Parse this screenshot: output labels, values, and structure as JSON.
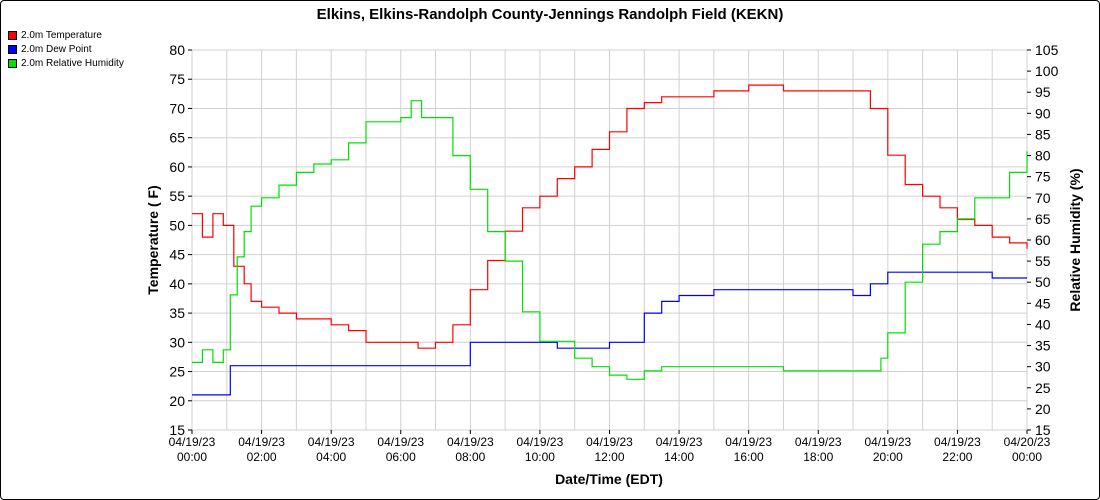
{
  "chart_data": {
    "type": "line",
    "title": "Elkins, Elkins-Randolph County-Jennings Randolph Field (KEKN)",
    "xlabel": "Date/Time (EDT)",
    "ylabel_left": "Temperature ( F)",
    "ylabel_right": "Relative Humidity (%)",
    "ylim_left": [
      15,
      80
    ],
    "ylim_right": [
      15,
      105
    ],
    "xlim_hours": [
      0,
      24
    ],
    "x_ticks": [
      {
        "date": "04/19/23",
        "time": "00:00"
      },
      {
        "date": "04/19/23",
        "time": "02:00"
      },
      {
        "date": "04/19/23",
        "time": "04:00"
      },
      {
        "date": "04/19/23",
        "time": "06:00"
      },
      {
        "date": "04/19/23",
        "time": "08:00"
      },
      {
        "date": "04/19/23",
        "time": "10:00"
      },
      {
        "date": "04/19/23",
        "time": "12:00"
      },
      {
        "date": "04/19/23",
        "time": "14:00"
      },
      {
        "date": "04/19/23",
        "time": "16:00"
      },
      {
        "date": "04/19/23",
        "time": "18:00"
      },
      {
        "date": "04/19/23",
        "time": "20:00"
      },
      {
        "date": "04/19/23",
        "time": "22:00"
      },
      {
        "date": "04/20/23",
        "time": "00:00"
      }
    ],
    "y_ticks_left": [
      15,
      20,
      25,
      30,
      35,
      40,
      45,
      50,
      55,
      60,
      65,
      70,
      75,
      80
    ],
    "y_ticks_right": [
      15,
      20,
      25,
      30,
      35,
      40,
      45,
      50,
      55,
      60,
      65,
      70,
      75,
      80,
      85,
      90,
      95,
      100,
      105
    ],
    "grid": true,
    "legend_position": "top-left",
    "series": [
      {
        "name": "2.0m Temperature",
        "color": "#ff0000",
        "axis": "left",
        "x": [
          0,
          0.3,
          0.6,
          0.9,
          1.2,
          1.5,
          1.7,
          2.0,
          2.5,
          3.0,
          3.5,
          4.0,
          4.5,
          5.0,
          5.5,
          6.0,
          6.5,
          7.0,
          7.5,
          8.0,
          8.5,
          9.0,
          9.5,
          10.0,
          10.5,
          11.0,
          11.5,
          12.0,
          12.5,
          13.0,
          13.5,
          14.0,
          14.5,
          15.0,
          16.0,
          17.0,
          18.0,
          19.0,
          19.5,
          20.0,
          20.5,
          21.0,
          21.5,
          22.0,
          22.5,
          23.0,
          23.5,
          24.0
        ],
        "y": [
          52,
          48,
          52,
          50,
          43,
          40,
          37,
          36,
          35,
          34,
          34,
          33,
          32,
          30,
          30,
          30,
          29,
          30,
          33,
          39,
          44,
          49,
          53,
          55,
          58,
          60,
          63,
          66,
          70,
          71,
          72,
          72,
          72,
          73,
          74,
          73,
          73,
          73,
          70,
          62,
          57,
          55,
          53,
          51,
          50,
          48,
          47,
          46
        ]
      },
      {
        "name": "2.0m Dew Point",
        "color": "#0000ff",
        "axis": "left",
        "x": [
          0,
          0.5,
          0.9,
          1.1,
          2.0,
          3.0,
          4.0,
          5.0,
          6.0,
          7.0,
          7.5,
          8.0,
          9.0,
          10.0,
          10.5,
          11.0,
          12.0,
          12.7,
          13.0,
          13.5,
          14.0,
          15.0,
          16.0,
          17.0,
          18.0,
          19.0,
          19.5,
          20.0,
          20.5,
          21.0,
          22.0,
          23.0,
          24.0
        ],
        "y": [
          21,
          21,
          21,
          26,
          26,
          26,
          26,
          26,
          26,
          26,
          26,
          30,
          30,
          30,
          29,
          29,
          30,
          30,
          35,
          37,
          38,
          39,
          39,
          39,
          39,
          38,
          40,
          42,
          42,
          42,
          42,
          41,
          41
        ]
      },
      {
        "name": "2.0m Relative Humidity",
        "color": "#00e000",
        "axis": "right",
        "x": [
          0,
          0.3,
          0.6,
          0.9,
          1.1,
          1.3,
          1.5,
          1.7,
          2.0,
          2.5,
          3.0,
          3.5,
          4.0,
          4.5,
          5.0,
          5.5,
          6.0,
          6.3,
          6.6,
          7.0,
          7.5,
          8.0,
          8.5,
          9.0,
          9.5,
          10.0,
          10.5,
          11.0,
          11.5,
          12.0,
          12.5,
          13.0,
          13.5,
          14.0,
          15.0,
          16.0,
          17.0,
          18.0,
          19.0,
          19.5,
          19.8,
          20.0,
          20.5,
          21.0,
          21.5,
          22.0,
          22.5,
          23.0,
          23.5,
          24.0
        ],
        "y": [
          31,
          34,
          31,
          34,
          47,
          56,
          62,
          68,
          70,
          73,
          76,
          78,
          79,
          83,
          88,
          88,
          89,
          93,
          89,
          89,
          80,
          72,
          62,
          55,
          43,
          36,
          36,
          32,
          30,
          28,
          27,
          29,
          30,
          30,
          30,
          30,
          29,
          29,
          29,
          29,
          32,
          38,
          50,
          59,
          62,
          65,
          70,
          70,
          76,
          81
        ]
      }
    ]
  }
}
